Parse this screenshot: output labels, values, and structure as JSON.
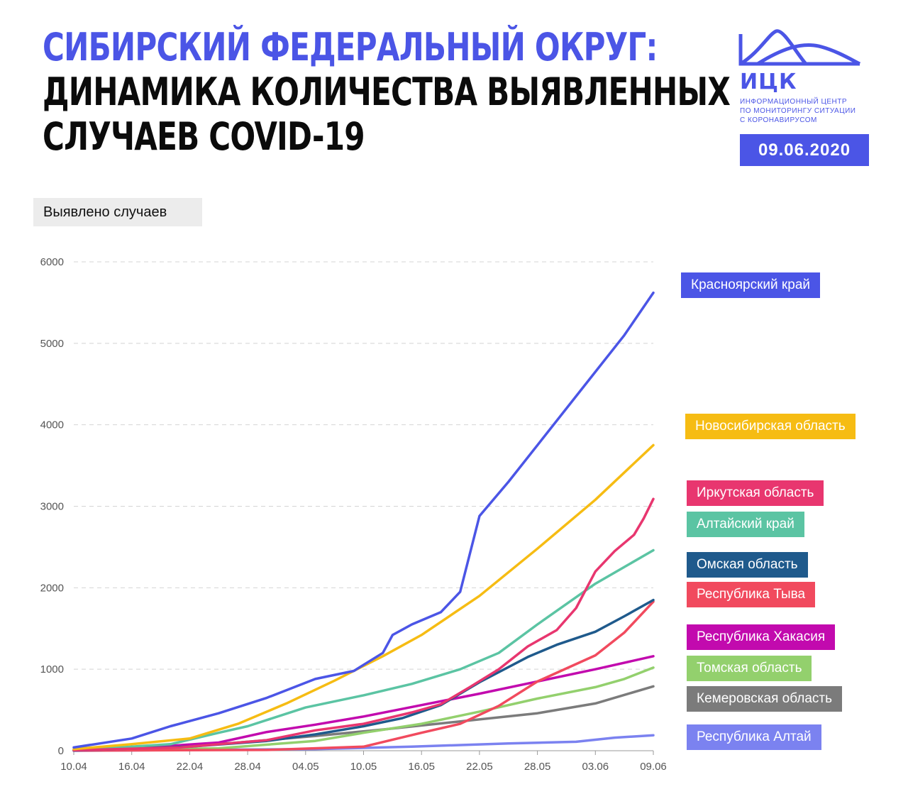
{
  "header": {
    "title_line1": "СИБИРСКИЙ ФЕДЕРАЛЬНЫЙ ОКРУГ:",
    "title_line2": "ДИНАМИКА КОЛИЧЕСТВА ВЫЯВЛЕННЫХ",
    "title_line3": "СЛУЧАЕВ COVID-19"
  },
  "logo": {
    "name": "ИЦК",
    "sub1": "ИНФОРМАЦИОННЫЙ ЦЕНТР",
    "sub2": "ПО МОНИТОРИНГУ СИТУАЦИИ",
    "sub3": "С КОРОНАВИРУСОМ",
    "date": "09.06.2020",
    "color": "#4b55e6"
  },
  "chart_data": {
    "type": "line",
    "ylabel": "Выявлено случаев",
    "ylim": [
      0,
      6000
    ],
    "yticks": [
      0,
      1000,
      2000,
      3000,
      4000,
      5000,
      6000
    ],
    "xlim": [
      "10.04",
      "09.06"
    ],
    "xtick_labels": [
      "10.04",
      "16.04",
      "22.04",
      "28.04",
      "04.05",
      "10.05",
      "16.05",
      "22.05",
      "28.05",
      "03.06",
      "09.06"
    ],
    "grid": true,
    "legend_position": "right",
    "series": [
      {
        "name": "Красноярский край",
        "color": "#4b55e6",
        "points": [
          [
            "10.04",
            40
          ],
          [
            "16.04",
            150
          ],
          [
            "20.04",
            300
          ],
          [
            "25.04",
            460
          ],
          [
            "30.04",
            650
          ],
          [
            "05.05",
            880
          ],
          [
            "09.05",
            980
          ],
          [
            "12.05",
            1200
          ],
          [
            "13.05",
            1420
          ],
          [
            "15.05",
            1550
          ],
          [
            "18.05",
            1700
          ],
          [
            "20.05",
            1950
          ],
          [
            "22.05",
            2880
          ],
          [
            "25.05",
            3300
          ],
          [
            "28.05",
            3750
          ],
          [
            "03.06",
            4650
          ],
          [
            "06.06",
            5100
          ],
          [
            "09.06",
            5620
          ]
        ]
      },
      {
        "name": "Новосибирская область",
        "color": "#f6bc13",
        "points": [
          [
            "10.04",
            20
          ],
          [
            "16.04",
            80
          ],
          [
            "22.04",
            150
          ],
          [
            "27.04",
            330
          ],
          [
            "02.05",
            580
          ],
          [
            "07.05",
            860
          ],
          [
            "12.05",
            1160
          ],
          [
            "16.05",
            1420
          ],
          [
            "22.05",
            1900
          ],
          [
            "28.05",
            2480
          ],
          [
            "03.06",
            3080
          ],
          [
            "09.06",
            3750
          ]
        ]
      },
      {
        "name": "Иркутская область",
        "color": "#e8366f",
        "points": [
          [
            "10.04",
            5
          ],
          [
            "21.04",
            40
          ],
          [
            "30.04",
            130
          ],
          [
            "05.05",
            250
          ],
          [
            "10.05",
            330
          ],
          [
            "15.05",
            470
          ],
          [
            "18.05",
            570
          ],
          [
            "21.05",
            780
          ],
          [
            "24.05",
            1000
          ],
          [
            "27.05",
            1280
          ],
          [
            "30.05",
            1480
          ],
          [
            "01.06",
            1750
          ],
          [
            "03.06",
            2200
          ],
          [
            "05.06",
            2450
          ],
          [
            "07.06",
            2650
          ],
          [
            "08.06",
            2850
          ],
          [
            "09.06",
            3090
          ]
        ]
      },
      {
        "name": "Алтайский край",
        "color": "#5bc4a3",
        "points": [
          [
            "10.04",
            5
          ],
          [
            "20.04",
            80
          ],
          [
            "25.04",
            220
          ],
          [
            "28.04",
            300
          ],
          [
            "04.05",
            530
          ],
          [
            "10.05",
            680
          ],
          [
            "15.05",
            820
          ],
          [
            "20.05",
            1000
          ],
          [
            "24.05",
            1200
          ],
          [
            "28.05",
            1550
          ],
          [
            "03.06",
            2050
          ],
          [
            "09.06",
            2460
          ]
        ]
      },
      {
        "name": "Омская область",
        "color": "#1f5a8c",
        "points": [
          [
            "10.04",
            3
          ],
          [
            "22.04",
            50
          ],
          [
            "30.04",
            120
          ],
          [
            "05.05",
            200
          ],
          [
            "10.05",
            300
          ],
          [
            "14.05",
            400
          ],
          [
            "18.05",
            560
          ],
          [
            "22.05",
            840
          ],
          [
            "27.05",
            1150
          ],
          [
            "30.05",
            1300
          ],
          [
            "03.06",
            1460
          ],
          [
            "06.06",
            1650
          ],
          [
            "09.06",
            1850
          ]
        ]
      },
      {
        "name": "Республика Тыва",
        "color": "#f14a5e",
        "points": [
          [
            "10.04",
            2
          ],
          [
            "30.04",
            10
          ],
          [
            "10.05",
            50
          ],
          [
            "16.05",
            220
          ],
          [
            "20.05",
            330
          ],
          [
            "24.05",
            550
          ],
          [
            "28.05",
            850
          ],
          [
            "03.06",
            1170
          ],
          [
            "06.06",
            1450
          ],
          [
            "09.06",
            1830
          ]
        ]
      },
      {
        "name": "Республика Хакасия",
        "color": "#c20aae",
        "points": [
          [
            "10.04",
            10
          ],
          [
            "20.04",
            60
          ],
          [
            "25.04",
            100
          ],
          [
            "30.04",
            230
          ],
          [
            "05.05",
            320
          ],
          [
            "10.05",
            420
          ],
          [
            "16.05",
            560
          ],
          [
            "22.05",
            700
          ],
          [
            "28.05",
            850
          ],
          [
            "03.06",
            1000
          ],
          [
            "09.06",
            1160
          ]
        ]
      },
      {
        "name": "Томская область",
        "color": "#93d06d",
        "points": [
          [
            "10.04",
            2
          ],
          [
            "25.04",
            30
          ],
          [
            "05.05",
            120
          ],
          [
            "10.05",
            220
          ],
          [
            "16.05",
            330
          ],
          [
            "22.05",
            480
          ],
          [
            "28.05",
            640
          ],
          [
            "03.06",
            780
          ],
          [
            "06.06",
            880
          ],
          [
            "09.06",
            1020
          ]
        ]
      },
      {
        "name": "Кемеровская область",
        "color": "#7b7b7b",
        "points": [
          [
            "10.04",
            5
          ],
          [
            "25.04",
            80
          ],
          [
            "05.05",
            180
          ],
          [
            "12.05",
            260
          ],
          [
            "20.05",
            360
          ],
          [
            "28.05",
            460
          ],
          [
            "03.06",
            580
          ],
          [
            "09.06",
            790
          ]
        ]
      },
      {
        "name": "Республика Алтай",
        "color": "#7b82f0",
        "points": [
          [
            "10.04",
            0
          ],
          [
            "05.05",
            20
          ],
          [
            "15.05",
            50
          ],
          [
            "25.05",
            90
          ],
          [
            "01.06",
            110
          ],
          [
            "05.06",
            160
          ],
          [
            "09.06",
            190
          ]
        ]
      }
    ]
  }
}
